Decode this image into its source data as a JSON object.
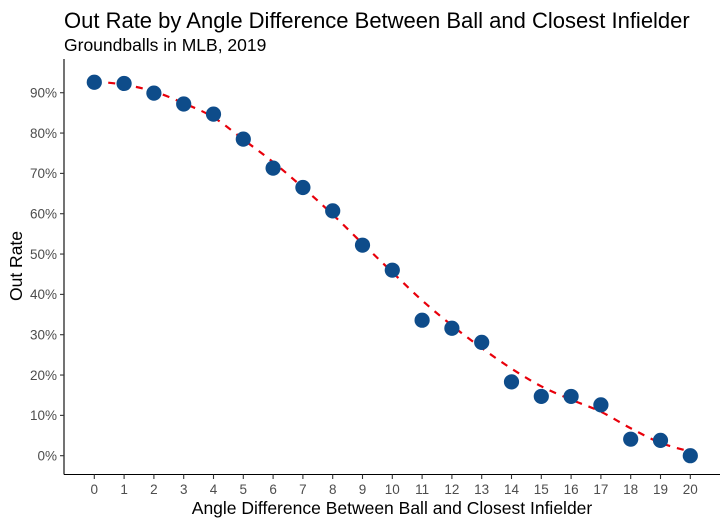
{
  "chart_data": {
    "type": "scatter",
    "title": "Out Rate by Angle Difference Between Ball and Closest Infielder",
    "subtitle": "Groundballs in MLB, 2019",
    "xlabel": "Angle Difference Between Ball and Closest Infielder",
    "ylabel": "Out Rate",
    "x": [
      0,
      1,
      2,
      3,
      4,
      5,
      6,
      7,
      8,
      9,
      10,
      11,
      12,
      13,
      14,
      15,
      16,
      17,
      18,
      19,
      20
    ],
    "series": [
      {
        "name": "Out Rate",
        "kind": "points",
        "color": "#0e4c8a",
        "values": [
          92.6,
          92.3,
          89.9,
          87.2,
          84.7,
          78.5,
          71.3,
          66.5,
          60.7,
          52.2,
          46.0,
          33.6,
          31.6,
          28.1,
          18.3,
          14.7,
          14.7,
          12.6,
          4.1,
          3.8,
          0.0
        ]
      },
      {
        "name": "Smoothed fit",
        "kind": "line",
        "style": "dashed",
        "color": "#e8000b",
        "values": [
          92.8,
          92.0,
          90.3,
          87.4,
          83.9,
          78.4,
          72.8,
          66.5,
          59.8,
          52.6,
          45.5,
          38.5,
          32.3,
          26.7,
          21.6,
          17.2,
          13.9,
          10.9,
          6.8,
          3.2,
          1.0
        ]
      }
    ],
    "xticks": [
      "0",
      "1",
      "2",
      "3",
      "4",
      "5",
      "6",
      "7",
      "8",
      "9",
      "10",
      "11",
      "12",
      "13",
      "14",
      "15",
      "16",
      "17",
      "18",
      "19",
      "20"
    ],
    "yticks": [
      "0%",
      "10%",
      "20%",
      "30%",
      "40%",
      "50%",
      "60%",
      "70%",
      "80%",
      "90%"
    ],
    "ytick_values": [
      0,
      10,
      20,
      30,
      40,
      50,
      60,
      70,
      80,
      90
    ],
    "xlim": [
      -1,
      21
    ],
    "ylim": [
      -4.5,
      97
    ],
    "grid": false,
    "legend": "none"
  }
}
